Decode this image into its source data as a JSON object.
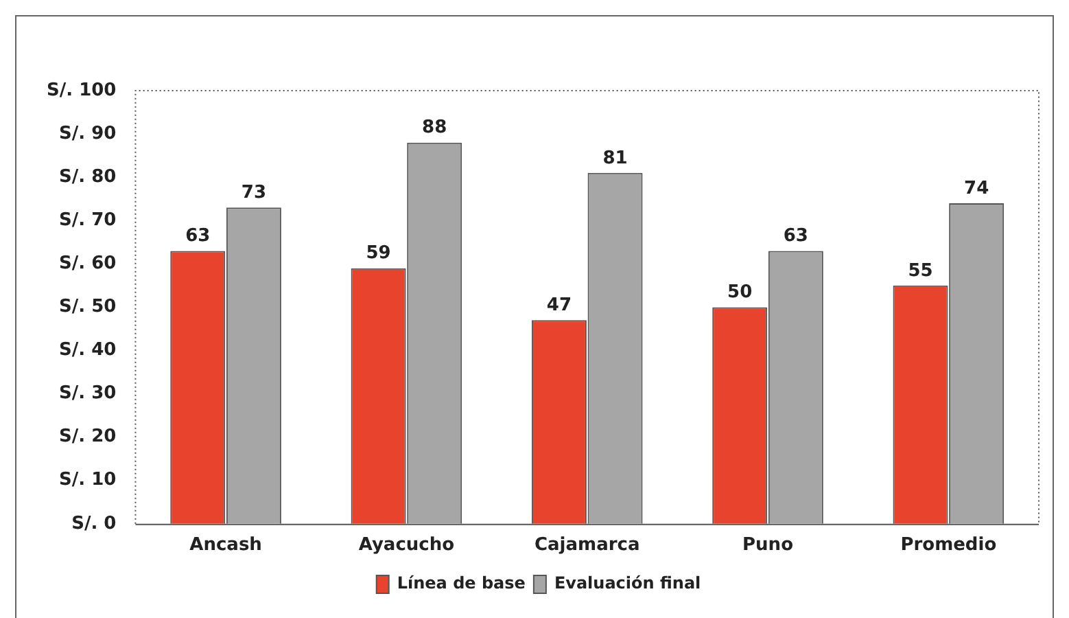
{
  "chart_data": {
    "type": "bar",
    "categories": [
      "Ancash",
      "Ayacucho",
      "Cajamarca",
      "Puno",
      "Promedio"
    ],
    "series": [
      {
        "name": "Línea de base",
        "color": "#e8432c",
        "values": [
          63,
          59,
          47,
          50,
          55
        ]
      },
      {
        "name": "Evaluación final",
        "color": "#a6a6a6",
        "values": [
          73,
          88,
          81,
          63,
          74
        ]
      }
    ],
    "ylim": [
      0,
      100
    ],
    "yticks": [
      {
        "value": 0,
        "label": "S/. 0"
      },
      {
        "value": 10,
        "label": "S/. 10"
      },
      {
        "value": 20,
        "label": "S/. 20"
      },
      {
        "value": 30,
        "label": "S/. 30"
      },
      {
        "value": 40,
        "label": "S/. 40"
      },
      {
        "value": 50,
        "label": "S/. 50"
      },
      {
        "value": 60,
        "label": "S/. 60"
      },
      {
        "value": 70,
        "label": "S/. 70"
      },
      {
        "value": 80,
        "label": "S/. 80"
      },
      {
        "value": 90,
        "label": "S/. 90"
      },
      {
        "value": 100,
        "label": "S/. 100"
      }
    ],
    "data_labels": true,
    "legend": "bottom",
    "grid": false
  }
}
